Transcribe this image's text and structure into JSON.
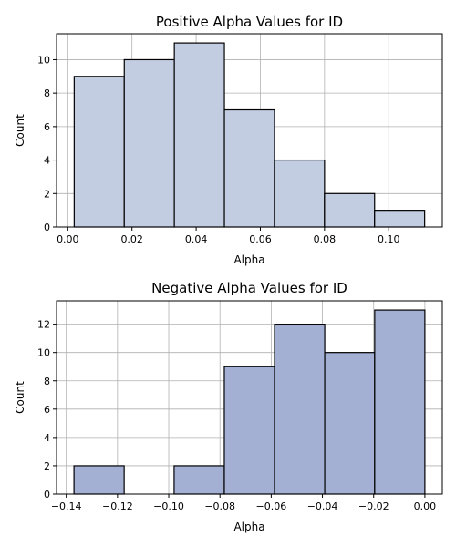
{
  "chart_data": [
    {
      "type": "bar",
      "title": "Positive Alpha Values for ID",
      "xlabel": "Alpha",
      "ylabel": "Count",
      "bins": [
        {
          "x0": 0.002,
          "x1": 0.0176,
          "count": 9
        },
        {
          "x0": 0.0176,
          "x1": 0.0332,
          "count": 10
        },
        {
          "x0": 0.0332,
          "x1": 0.0488,
          "count": 11
        },
        {
          "x0": 0.0488,
          "x1": 0.0644,
          "count": 7
        },
        {
          "x0": 0.0644,
          "x1": 0.08,
          "count": 4
        },
        {
          "x0": 0.08,
          "x1": 0.0956,
          "count": 2
        },
        {
          "x0": 0.0956,
          "x1": 0.1112,
          "count": 1
        }
      ],
      "xlim": [
        -0.0035,
        0.1167
      ],
      "ylim": [
        0,
        11.55
      ],
      "xticks": [
        0.0,
        0.02,
        0.04,
        0.06,
        0.08,
        0.1
      ],
      "xtick_labels": [
        "0.00",
        "0.02",
        "0.04",
        "0.06",
        "0.08",
        "0.10"
      ],
      "yticks": [
        0,
        2,
        4,
        6,
        8,
        10
      ],
      "ytick_labels": [
        "0",
        "2",
        "4",
        "6",
        "8",
        "10"
      ],
      "bar_color": "#c3cde1",
      "grid": true
    },
    {
      "type": "bar",
      "title": "Negative Alpha Values for ID",
      "xlabel": "Alpha",
      "ylabel": "Count",
      "bins": [
        {
          "x0": -0.137,
          "x1": -0.1174,
          "count": 2
        },
        {
          "x0": -0.1174,
          "x1": -0.0979,
          "count": 0
        },
        {
          "x0": -0.0979,
          "x1": -0.0783,
          "count": 2
        },
        {
          "x0": -0.0783,
          "x1": -0.0587,
          "count": 9
        },
        {
          "x0": -0.0587,
          "x1": -0.0391,
          "count": 12
        },
        {
          "x0": -0.0391,
          "x1": -0.0196,
          "count": 10
        },
        {
          "x0": -0.0196,
          "x1": 0.0,
          "count": 13
        }
      ],
      "xlim": [
        -0.1438,
        0.0068
      ],
      "ylim": [
        0,
        13.65
      ],
      "xticks": [
        -0.14,
        -0.12,
        -0.1,
        -0.08,
        -0.06,
        -0.04,
        -0.02,
        0.0
      ],
      "xtick_labels": [
        "−0.14",
        "−0.12",
        "−0.10",
        "−0.08",
        "−0.06",
        "−0.04",
        "−0.02",
        "0.00"
      ],
      "yticks": [
        0,
        2,
        4,
        6,
        8,
        10,
        12
      ],
      "ytick_labels": [
        "0",
        "2",
        "4",
        "6",
        "8",
        "10",
        "12"
      ],
      "bar_color": "#a3b0d4",
      "grid": true
    }
  ]
}
